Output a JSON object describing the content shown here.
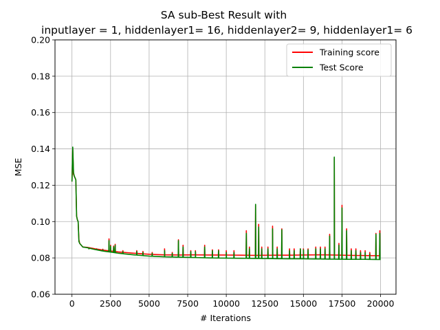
{
  "chart_data": {
    "type": "line",
    "title_line1": "SA sub-Best Result with",
    "title_line2": "inputlayer = 1, hiddenlayer1= 16, hiddenlayer2= 9, hiddenlayer1= 6",
    "xlabel": "# Iterations",
    "ylabel": "MSE",
    "xlim": [
      -1100,
      21000
    ],
    "ylim": [
      0.06,
      0.2
    ],
    "xticks": [
      0,
      2500,
      5000,
      7500,
      10000,
      12500,
      15000,
      17500,
      20000
    ],
    "yticks": [
      0.06,
      0.08,
      0.1,
      0.12,
      0.14,
      0.16,
      0.18,
      0.2
    ],
    "xtick_labels": [
      "0",
      "2500",
      "5000",
      "7500",
      "10000",
      "12500",
      "15000",
      "17500",
      "20000"
    ],
    "ytick_labels": [
      "0.06",
      "0.08",
      "0.10",
      "0.12",
      "0.14",
      "0.16",
      "0.18",
      "0.20"
    ],
    "grid": true,
    "legend_position": "upper-right",
    "series": [
      {
        "name": "Training score",
        "color": "#ff0000",
        "base": [
          [
            0,
            0.122
          ],
          [
            50,
            0.14
          ],
          [
            100,
            0.126
          ],
          [
            150,
            0.125
          ],
          [
            200,
            0.124
          ],
          [
            250,
            0.123
          ],
          [
            300,
            0.103
          ],
          [
            350,
            0.101
          ],
          [
            400,
            0.1
          ],
          [
            450,
            0.09
          ],
          [
            500,
            0.088
          ],
          [
            600,
            0.087
          ],
          [
            700,
            0.086
          ],
          [
            1000,
            0.0858
          ],
          [
            1500,
            0.085
          ],
          [
            2000,
            0.0843
          ],
          [
            2500,
            0.0838
          ],
          [
            3000,
            0.0833
          ],
          [
            4000,
            0.0826
          ],
          [
            5000,
            0.082
          ],
          [
            6000,
            0.0817
          ],
          [
            7000,
            0.0816
          ],
          [
            8000,
            0.0817
          ],
          [
            9000,
            0.0816
          ],
          [
            10000,
            0.0816
          ],
          [
            11000,
            0.0815
          ],
          [
            12000,
            0.0814
          ],
          [
            13000,
            0.0815
          ],
          [
            14000,
            0.0815
          ],
          [
            15000,
            0.0816
          ],
          [
            16000,
            0.0817
          ],
          [
            17000,
            0.0816
          ],
          [
            18000,
            0.0814
          ],
          [
            19000,
            0.0813
          ],
          [
            20000,
            0.0812
          ]
        ],
        "spikes": [
          [
            1100,
            0.085
          ],
          [
            1600,
            0.085
          ],
          [
            2000,
            0.0848
          ],
          [
            2400,
            0.0905
          ],
          [
            2500,
            0.087
          ],
          [
            2700,
            0.0865
          ],
          [
            2800,
            0.0875
          ],
          [
            3300,
            0.084
          ],
          [
            4200,
            0.084
          ],
          [
            4600,
            0.0836
          ],
          [
            5200,
            0.083
          ],
          [
            6000,
            0.085
          ],
          [
            6500,
            0.083
          ],
          [
            6900,
            0.09
          ],
          [
            7200,
            0.087
          ],
          [
            7700,
            0.084
          ],
          [
            8000,
            0.084
          ],
          [
            8600,
            0.087
          ],
          [
            9100,
            0.0845
          ],
          [
            9500,
            0.0845
          ],
          [
            10000,
            0.084
          ],
          [
            10500,
            0.084
          ],
          [
            11300,
            0.095
          ],
          [
            11500,
            0.086
          ],
          [
            11900,
            0.109
          ],
          [
            12100,
            0.0985
          ],
          [
            12300,
            0.086
          ],
          [
            12700,
            0.086
          ],
          [
            13000,
            0.0975
          ],
          [
            13300,
            0.086
          ],
          [
            13600,
            0.096
          ],
          [
            14100,
            0.085
          ],
          [
            14400,
            0.085
          ],
          [
            14800,
            0.085
          ],
          [
            15000,
            0.085
          ],
          [
            15300,
            0.085
          ],
          [
            15800,
            0.086
          ],
          [
            16100,
            0.086
          ],
          [
            16400,
            0.086
          ],
          [
            16700,
            0.093
          ],
          [
            17000,
            0.135
          ],
          [
            17300,
            0.088
          ],
          [
            17500,
            0.109
          ],
          [
            17800,
            0.096
          ],
          [
            18100,
            0.085
          ],
          [
            18400,
            0.085
          ],
          [
            18700,
            0.084
          ],
          [
            19000,
            0.084
          ],
          [
            19300,
            0.083
          ],
          [
            19700,
            0.0935
          ],
          [
            19950,
            0.095
          ]
        ]
      },
      {
        "name": "Test Score",
        "color": "#008000",
        "base": [
          [
            0,
            0.122
          ],
          [
            50,
            0.141
          ],
          [
            100,
            0.127
          ],
          [
            150,
            0.125
          ],
          [
            200,
            0.124
          ],
          [
            250,
            0.123
          ],
          [
            300,
            0.103
          ],
          [
            350,
            0.101
          ],
          [
            400,
            0.1
          ],
          [
            450,
            0.089
          ],
          [
            500,
            0.088
          ],
          [
            600,
            0.087
          ],
          [
            700,
            0.086
          ],
          [
            1000,
            0.0856
          ],
          [
            1500,
            0.0846
          ],
          [
            2000,
            0.0838
          ],
          [
            2500,
            0.0832
          ],
          [
            3000,
            0.0826
          ],
          [
            4000,
            0.0817
          ],
          [
            5000,
            0.081
          ],
          [
            6000,
            0.0806
          ],
          [
            7000,
            0.0804
          ],
          [
            8000,
            0.0802
          ],
          [
            9000,
            0.08
          ],
          [
            10000,
            0.0799
          ],
          [
            11000,
            0.0798
          ],
          [
            12000,
            0.0797
          ],
          [
            13000,
            0.0796
          ],
          [
            14000,
            0.0795
          ],
          [
            15000,
            0.0795
          ],
          [
            16000,
            0.0794
          ],
          [
            17000,
            0.0793
          ],
          [
            18000,
            0.0792
          ],
          [
            19000,
            0.0792
          ],
          [
            20000,
            0.0791
          ]
        ],
        "spikes": [
          [
            1100,
            0.085
          ],
          [
            1600,
            0.0848
          ],
          [
            2000,
            0.0845
          ],
          [
            2400,
            0.0895
          ],
          [
            2500,
            0.0865
          ],
          [
            2700,
            0.086
          ],
          [
            2800,
            0.087
          ],
          [
            3300,
            0.0835
          ],
          [
            4200,
            0.0835
          ],
          [
            4600,
            0.083
          ],
          [
            5200,
            0.0825
          ],
          [
            6000,
            0.084
          ],
          [
            6500,
            0.0825
          ],
          [
            6900,
            0.0895
          ],
          [
            7200,
            0.086
          ],
          [
            7700,
            0.0835
          ],
          [
            8000,
            0.0835
          ],
          [
            8600,
            0.086
          ],
          [
            9100,
            0.084
          ],
          [
            9500,
            0.084
          ],
          [
            10000,
            0.083
          ],
          [
            10500,
            0.083
          ],
          [
            11300,
            0.0935
          ],
          [
            11500,
            0.085
          ],
          [
            11900,
            0.1095
          ],
          [
            12100,
            0.097
          ],
          [
            12300,
            0.085
          ],
          [
            12700,
            0.085
          ],
          [
            13000,
            0.096
          ],
          [
            13300,
            0.085
          ],
          [
            13600,
            0.0955
          ],
          [
            14100,
            0.084
          ],
          [
            14400,
            0.084
          ],
          [
            14800,
            0.085
          ],
          [
            15000,
            0.0845
          ],
          [
            15300,
            0.0845
          ],
          [
            15800,
            0.085
          ],
          [
            16100,
            0.085
          ],
          [
            16400,
            0.085
          ],
          [
            16700,
            0.092
          ],
          [
            17000,
            0.1355
          ],
          [
            17300,
            0.087
          ],
          [
            17500,
            0.1075
          ],
          [
            17800,
            0.095
          ],
          [
            18100,
            0.084
          ],
          [
            18400,
            0.084
          ],
          [
            18700,
            0.083
          ],
          [
            19000,
            0.083
          ],
          [
            19300,
            0.082
          ],
          [
            19700,
            0.093
          ],
          [
            19950,
            0.0935
          ]
        ]
      }
    ]
  }
}
